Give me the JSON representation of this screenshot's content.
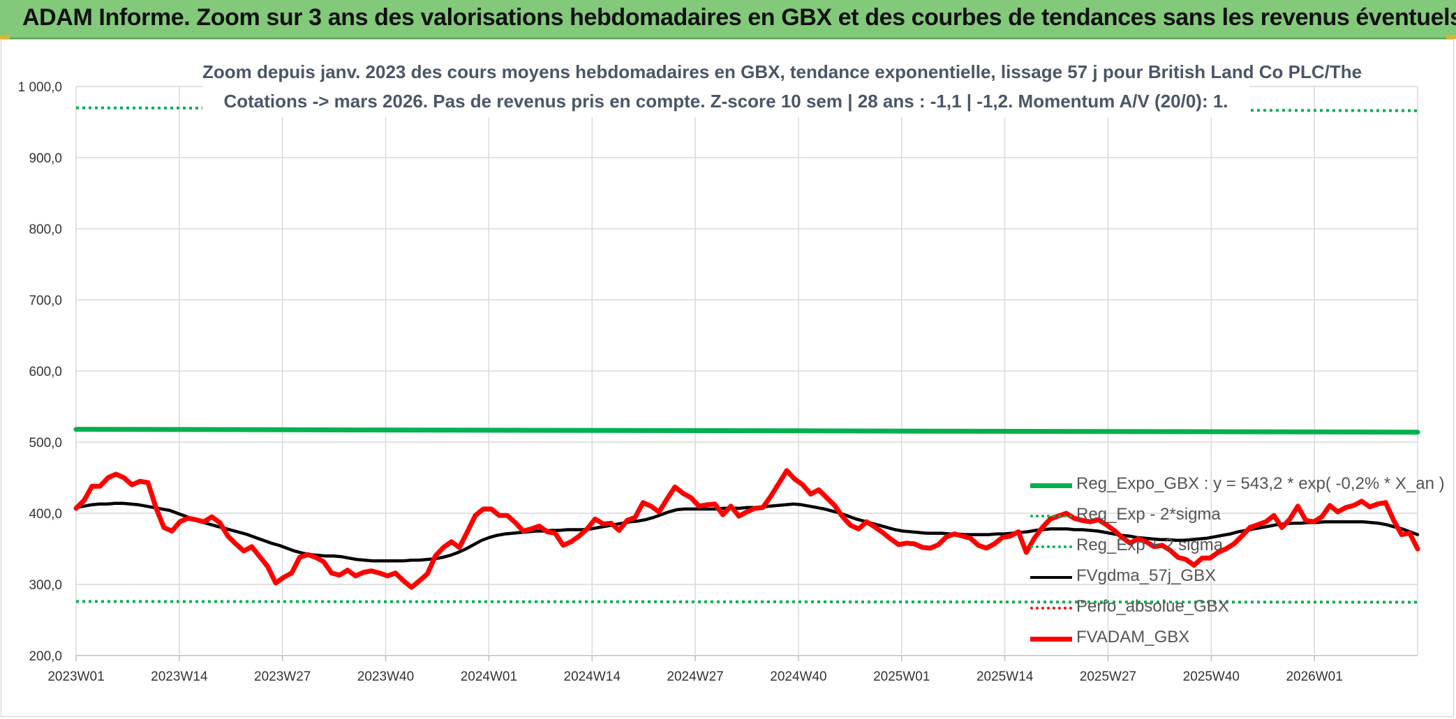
{
  "banner": {
    "title": "ADAM Informe. Zoom sur 3 ans des valorisations hebdomadaires en GBX et des courbes de tendances sans les revenus éventuels"
  },
  "chart_data": {
    "type": "line",
    "title_line1": "Zoom depuis janv. 2023 des cours moyens hebdomadaires en GBX, tendance exponentielle, lissage 57 j pour British Land Co PLC/The",
    "title_line2": "Cotations -> mars 2026. Pas de revenus pris en compte. Z-score 10 sem | 28 ans : -1,1 | -1,2. Momentum A/V (20/0): 1.",
    "ylim": [
      200,
      1000
    ],
    "y_ticks": [
      "1 000,0",
      "900,0",
      "800,0",
      "700,0",
      "600,0",
      "500,0",
      "400,0",
      "300,0",
      "200,0"
    ],
    "y_tick_values": [
      1000,
      900,
      800,
      700,
      600,
      500,
      400,
      300,
      200
    ],
    "x_ticks": [
      "2023W01",
      "2023W14",
      "2023W27",
      "2023W40",
      "2024W01",
      "2024W14",
      "2024W27",
      "2024W40",
      "2025W01",
      "2025W14",
      "2025W27",
      "2025W40",
      "2026W01"
    ],
    "x_tick_weeks": [
      0,
      13,
      26,
      39,
      52,
      65,
      78,
      91,
      104,
      117,
      130,
      143,
      156
    ],
    "x_total_weeks": 169,
    "grid": true,
    "legend_position": "bottom-right",
    "series": [
      {
        "name": "Reg_Expo_GBX : y = 543,2 * exp( -0,2% *  X_an )",
        "color": "#00b050",
        "style": "solid-thick",
        "values": [
          518,
          514
        ]
      },
      {
        "name": "Reg_Exp - 2*sigma",
        "color": "#00b050",
        "style": "dotted",
        "values": [
          276,
          275
        ]
      },
      {
        "name": "Reg_Exp + 2 sigma",
        "color": "#00b050",
        "style": "dotted",
        "values": [
          970,
          966
        ]
      },
      {
        "name": "FVgdma_57j_GBX",
        "color": "#000000",
        "style": "solid",
        "values": [
          408,
          410,
          412,
          413,
          413,
          414,
          414,
          413,
          412,
          410,
          408,
          406,
          404,
          400,
          396,
          392,
          388,
          385,
          382,
          379,
          376,
          373,
          370,
          366,
          362,
          358,
          355,
          351,
          347,
          344,
          342,
          341,
          340,
          340,
          339,
          337,
          335,
          334,
          333,
          333,
          333,
          333,
          333,
          334,
          334,
          335,
          336,
          338,
          341,
          345,
          350,
          356,
          362,
          366,
          369,
          371,
          372,
          373,
          374,
          375,
          375,
          376,
          376,
          377,
          377,
          377,
          378,
          380,
          382,
          384,
          386,
          388,
          389,
          391,
          394,
          398,
          402,
          405,
          406,
          406,
          406,
          406,
          406,
          407,
          407,
          407,
          408,
          408,
          409,
          410,
          411,
          412,
          413,
          412,
          410,
          408,
          406,
          403,
          400,
          396,
          392,
          389,
          386,
          383,
          380,
          377,
          375,
          374,
          373,
          372,
          372,
          372,
          371,
          371,
          370,
          370,
          370,
          370,
          371,
          371,
          372,
          373,
          374,
          376,
          377,
          378,
          378,
          378,
          377,
          377,
          376,
          375,
          373,
          371,
          369,
          368,
          366,
          365,
          364,
          363,
          363,
          362,
          362,
          363,
          364,
          365,
          367,
          369,
          371,
          374,
          376,
          378,
          380,
          382,
          384,
          385,
          386,
          386,
          387,
          387,
          388,
          388,
          388,
          388,
          388,
          388,
          387,
          386,
          384,
          381,
          378,
          374,
          370
        ]
      },
      {
        "name": "Perfo_absolue_GBX",
        "color": "#ff0000",
        "style": "dotted",
        "values": []
      },
      {
        "name": "FVADAM_GBX",
        "color": "#ff0000",
        "style": "solid-thick",
        "values": [
          407,
          418,
          438,
          438,
          450,
          455,
          450,
          440,
          445,
          443,
          408,
          380,
          375,
          388,
          393,
          391,
          388,
          395,
          387,
          368,
          357,
          347,
          353,
          339,
          325,
          302,
          310,
          316,
          338,
          342,
          338,
          332,
          316,
          313,
          320,
          312,
          317,
          319,
          316,
          312,
          316,
          305,
          296,
          305,
          315,
          340,
          352,
          360,
          352,
          374,
          397,
          406,
          406,
          397,
          397,
          387,
          375,
          378,
          382,
          374,
          372,
          355,
          360,
          368,
          378,
          392,
          385,
          386,
          376,
          390,
          394,
          415,
          410,
          402,
          420,
          437,
          428,
          422,
          410,
          412,
          413,
          398,
          410,
          396,
          402,
          407,
          408,
          424,
          442,
          460,
          448,
          440,
          427,
          433,
          422,
          411,
          395,
          383,
          378,
          388,
          381,
          373,
          364,
          356,
          358,
          357,
          352,
          351,
          356,
          367,
          371,
          368,
          365,
          355,
          351,
          357,
          366,
          368,
          374,
          345,
          365,
          380,
          392,
          396,
          400,
          393,
          390,
          388,
          391,
          384,
          376,
          366,
          358,
          364,
          360,
          353,
          355,
          348,
          338,
          335,
          327,
          337,
          337,
          345,
          350,
          357,
          368,
          380,
          384,
          388,
          397,
          380,
          392,
          410,
          390,
          388,
          395,
          411,
          402,
          408,
          411,
          417,
          409,
          413,
          415,
          390,
          370,
          372,
          350
        ]
      }
    ]
  }
}
